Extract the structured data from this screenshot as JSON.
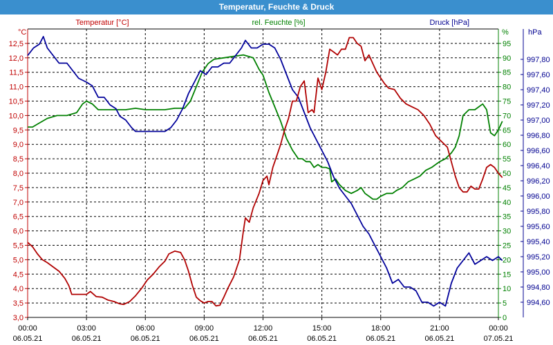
{
  "window": {
    "title": "Temperatur, Feuchte & Druck"
  },
  "chart_data": {
    "type": "line",
    "title": "Temperatur, Feuchte & Druck",
    "x_ticks": [
      {
        "time": "00:00",
        "date": "06.05.21"
      },
      {
        "time": "03:00",
        "date": "06.05.21"
      },
      {
        "time": "06:00",
        "date": "06.05.21"
      },
      {
        "time": "09:00",
        "date": "06.05.21"
      },
      {
        "time": "12:00",
        "date": "06.05.21"
      },
      {
        "time": "15:00",
        "date": "06.05.21"
      },
      {
        "time": "18:00",
        "date": "06.05.21"
      },
      {
        "time": "21:00",
        "date": "06.05.21"
      },
      {
        "time": "00:00",
        "date": "07.05.21"
      }
    ],
    "xlim_hours": [
      0,
      24
    ],
    "grid": true,
    "axes": {
      "temperature": {
        "label": "Temperatur [°C]",
        "unit": "°C",
        "color": "#c00000",
        "ylim": [
          3.0,
          13.0
        ],
        "ticks": [
          "3,0",
          "3,5",
          "4,0",
          "4,5",
          "5,0",
          "5,5",
          "6,0",
          "6,5",
          "7,0",
          "7,5",
          "8,0",
          "8,5",
          "9,0",
          "9,5",
          "10,0",
          "10,5",
          "11,0",
          "11,5",
          "12,0",
          "12,5"
        ]
      },
      "humidity": {
        "label": "rel. Feuchte [%]",
        "unit": "%",
        "color": "#008000",
        "ylim": [
          0,
          100
        ],
        "ticks": [
          "0",
          "5",
          "10",
          "15",
          "20",
          "25",
          "30",
          "35",
          "40",
          "45",
          "50",
          "55",
          "60",
          "65",
          "70",
          "75",
          "80",
          "85",
          "90",
          "95"
        ]
      },
      "pressure": {
        "label": "Druck [hPa]",
        "unit": "hPa",
        "color": "#000090",
        "ylim": [
          994.4,
          998.2
        ],
        "ticks": [
          "994,60",
          "994,80",
          "995,00",
          "995,20",
          "995,40",
          "995,60",
          "995,80",
          "996,00",
          "996,20",
          "996,40",
          "996,60",
          "996,80",
          "997,00",
          "997,20",
          "997,40",
          "997,60",
          "997,80"
        ]
      }
    },
    "series": [
      {
        "name": "Temperatur",
        "axis": "temperature",
        "color": "#b00000",
        "points": [
          [
            0,
            5.6
          ],
          [
            0.25,
            5.45
          ],
          [
            0.5,
            5.2
          ],
          [
            0.75,
            5.0
          ],
          [
            1.0,
            4.9
          ],
          [
            1.3,
            4.75
          ],
          [
            1.6,
            4.6
          ],
          [
            1.9,
            4.35
          ],
          [
            2.1,
            4.1
          ],
          [
            2.25,
            3.8
          ],
          [
            2.6,
            3.8
          ],
          [
            3.0,
            3.8
          ],
          [
            3.2,
            3.9
          ],
          [
            3.5,
            3.72
          ],
          [
            3.8,
            3.7
          ],
          [
            4.1,
            3.6
          ],
          [
            4.4,
            3.55
          ],
          [
            4.7,
            3.47
          ],
          [
            4.9,
            3.45
          ],
          [
            5.2,
            3.55
          ],
          [
            5.5,
            3.75
          ],
          [
            5.8,
            4.0
          ],
          [
            6.1,
            4.3
          ],
          [
            6.4,
            4.5
          ],
          [
            6.7,
            4.75
          ],
          [
            7.0,
            4.95
          ],
          [
            7.2,
            5.2
          ],
          [
            7.5,
            5.3
          ],
          [
            7.8,
            5.25
          ],
          [
            8.0,
            5.0
          ],
          [
            8.2,
            4.6
          ],
          [
            8.4,
            4.1
          ],
          [
            8.6,
            3.7
          ],
          [
            8.8,
            3.58
          ],
          [
            9.0,
            3.5
          ],
          [
            9.2,
            3.55
          ],
          [
            9.4,
            3.55
          ],
          [
            9.6,
            3.4
          ],
          [
            9.8,
            3.42
          ],
          [
            10.0,
            3.7
          ],
          [
            10.2,
            4.0
          ],
          [
            10.5,
            4.4
          ],
          [
            10.8,
            5.0
          ],
          [
            11.0,
            6.0
          ],
          [
            11.1,
            6.45
          ],
          [
            11.3,
            6.3
          ],
          [
            11.5,
            6.8
          ],
          [
            11.8,
            7.3
          ],
          [
            12.0,
            7.75
          ],
          [
            12.2,
            7.9
          ],
          [
            12.3,
            7.6
          ],
          [
            12.5,
            8.2
          ],
          [
            12.7,
            8.6
          ],
          [
            12.9,
            9.0
          ],
          [
            13.1,
            9.5
          ],
          [
            13.3,
            9.9
          ],
          [
            13.5,
            10.5
          ],
          [
            13.7,
            10.5
          ],
          [
            13.9,
            11.0
          ],
          [
            14.1,
            11.2
          ],
          [
            14.3,
            10.1
          ],
          [
            14.5,
            10.2
          ],
          [
            14.6,
            10.1
          ],
          [
            14.8,
            11.3
          ],
          [
            15.0,
            10.9
          ],
          [
            15.2,
            11.5
          ],
          [
            15.4,
            12.3
          ],
          [
            15.6,
            12.2
          ],
          [
            15.8,
            12.1
          ],
          [
            16.0,
            12.3
          ],
          [
            16.2,
            12.3
          ],
          [
            16.4,
            12.7
          ],
          [
            16.6,
            12.7
          ],
          [
            16.8,
            12.5
          ],
          [
            17.0,
            12.4
          ],
          [
            17.2,
            11.9
          ],
          [
            17.4,
            12.1
          ],
          [
            17.6,
            11.8
          ],
          [
            17.8,
            11.5
          ],
          [
            18.0,
            11.3
          ],
          [
            18.2,
            11.1
          ],
          [
            18.4,
            10.95
          ],
          [
            18.7,
            10.9
          ],
          [
            19.0,
            10.6
          ],
          [
            19.3,
            10.4
          ],
          [
            19.6,
            10.3
          ],
          [
            19.9,
            10.2
          ],
          [
            20.2,
            10.0
          ],
          [
            20.5,
            9.7
          ],
          [
            20.8,
            9.3
          ],
          [
            21.1,
            9.1
          ],
          [
            21.4,
            8.9
          ],
          [
            21.6,
            8.4
          ],
          [
            21.8,
            7.9
          ],
          [
            22.0,
            7.5
          ],
          [
            22.2,
            7.35
          ],
          [
            22.4,
            7.35
          ],
          [
            22.6,
            7.55
          ],
          [
            22.8,
            7.45
          ],
          [
            23.0,
            7.45
          ],
          [
            23.2,
            7.8
          ],
          [
            23.4,
            8.2
          ],
          [
            23.6,
            8.3
          ],
          [
            23.8,
            8.2
          ],
          [
            24.0,
            8.0
          ],
          [
            24.2,
            7.85
          ]
        ]
      },
      {
        "name": "rel. Feuchte",
        "axis": "humidity",
        "color": "#008000",
        "points": [
          [
            0,
            66
          ],
          [
            0.25,
            66
          ],
          [
            0.5,
            67
          ],
          [
            1.0,
            69
          ],
          [
            1.5,
            70
          ],
          [
            2.0,
            70
          ],
          [
            2.5,
            71
          ],
          [
            2.8,
            74
          ],
          [
            3.0,
            75
          ],
          [
            3.3,
            74
          ],
          [
            3.6,
            72
          ],
          [
            4.0,
            72
          ],
          [
            4.5,
            72
          ],
          [
            5.0,
            72
          ],
          [
            5.5,
            72.5
          ],
          [
            6.0,
            72
          ],
          [
            6.5,
            72
          ],
          [
            7.0,
            72
          ],
          [
            7.5,
            72.5
          ],
          [
            8.0,
            72.5
          ],
          [
            8.3,
            75
          ],
          [
            8.6,
            80
          ],
          [
            8.9,
            85
          ],
          [
            9.2,
            88
          ],
          [
            9.5,
            89.5
          ],
          [
            10.0,
            90
          ],
          [
            10.5,
            90.5
          ],
          [
            11.0,
            91
          ],
          [
            11.5,
            90
          ],
          [
            11.8,
            86
          ],
          [
            12.0,
            84
          ],
          [
            12.3,
            78
          ],
          [
            12.6,
            73
          ],
          [
            12.9,
            68
          ],
          [
            13.2,
            62
          ],
          [
            13.5,
            58
          ],
          [
            13.8,
            55
          ],
          [
            14.0,
            55
          ],
          [
            14.2,
            54
          ],
          [
            14.4,
            54
          ],
          [
            14.6,
            52
          ],
          [
            14.8,
            53
          ],
          [
            15.0,
            52
          ],
          [
            15.2,
            52
          ],
          [
            15.4,
            51.5
          ],
          [
            15.5,
            47
          ],
          [
            15.7,
            48
          ],
          [
            15.9,
            46
          ],
          [
            16.2,
            44
          ],
          [
            16.5,
            43
          ],
          [
            16.8,
            44
          ],
          [
            17.0,
            45
          ],
          [
            17.2,
            43
          ],
          [
            17.4,
            42
          ],
          [
            17.6,
            41
          ],
          [
            17.8,
            41
          ],
          [
            18.0,
            42
          ],
          [
            18.3,
            43
          ],
          [
            18.6,
            43
          ],
          [
            18.8,
            44
          ],
          [
            19.1,
            45
          ],
          [
            19.4,
            47
          ],
          [
            19.7,
            48
          ],
          [
            20.0,
            49
          ],
          [
            20.3,
            51
          ],
          [
            20.6,
            52
          ],
          [
            21.0,
            54
          ],
          [
            21.3,
            55
          ],
          [
            21.6,
            57
          ],
          [
            21.8,
            59
          ],
          [
            22.0,
            63
          ],
          [
            22.2,
            70
          ],
          [
            22.5,
            72
          ],
          [
            22.8,
            72
          ],
          [
            23.0,
            73
          ],
          [
            23.2,
            74
          ],
          [
            23.4,
            72
          ],
          [
            23.6,
            64
          ],
          [
            23.8,
            63
          ],
          [
            24.0,
            65
          ],
          [
            24.2,
            68
          ]
        ]
      },
      {
        "name": "Druck",
        "axis": "pressure",
        "color": "#00009a",
        "points": [
          [
            0,
            997.85
          ],
          [
            0.3,
            997.95
          ],
          [
            0.6,
            998.0
          ],
          [
            0.8,
            998.1
          ],
          [
            1.0,
            997.95
          ],
          [
            1.3,
            997.85
          ],
          [
            1.6,
            997.75
          ],
          [
            2.0,
            997.75
          ],
          [
            2.3,
            997.65
          ],
          [
            2.6,
            997.55
          ],
          [
            3.0,
            997.5
          ],
          [
            3.3,
            997.45
          ],
          [
            3.6,
            997.3
          ],
          [
            3.9,
            997.3
          ],
          [
            4.2,
            997.2
          ],
          [
            4.5,
            997.15
          ],
          [
            4.7,
            997.05
          ],
          [
            5.0,
            997.0
          ],
          [
            5.3,
            996.9
          ],
          [
            5.5,
            996.85
          ],
          [
            6.0,
            996.85
          ],
          [
            6.5,
            996.85
          ],
          [
            7.0,
            996.85
          ],
          [
            7.3,
            996.9
          ],
          [
            7.6,
            997.0
          ],
          [
            7.9,
            997.15
          ],
          [
            8.2,
            997.35
          ],
          [
            8.5,
            997.5
          ],
          [
            8.8,
            997.65
          ],
          [
            9.1,
            997.6
          ],
          [
            9.4,
            997.7
          ],
          [
            9.7,
            997.7
          ],
          [
            10.0,
            997.75
          ],
          [
            10.3,
            997.75
          ],
          [
            10.6,
            997.85
          ],
          [
            10.9,
            997.95
          ],
          [
            11.1,
            998.05
          ],
          [
            11.4,
            997.95
          ],
          [
            11.7,
            997.95
          ],
          [
            12.0,
            998.0
          ],
          [
            12.3,
            998.0
          ],
          [
            12.6,
            997.95
          ],
          [
            12.9,
            997.8
          ],
          [
            13.2,
            997.6
          ],
          [
            13.5,
            997.4
          ],
          [
            13.8,
            997.3
          ],
          [
            14.1,
            997.1
          ],
          [
            14.4,
            996.9
          ],
          [
            14.7,
            996.75
          ],
          [
            15.0,
            996.6
          ],
          [
            15.3,
            996.45
          ],
          [
            15.6,
            996.25
          ],
          [
            15.9,
            996.1
          ],
          [
            16.2,
            996.0
          ],
          [
            16.5,
            995.9
          ],
          [
            16.8,
            995.75
          ],
          [
            17.1,
            995.6
          ],
          [
            17.4,
            995.5
          ],
          [
            17.7,
            995.35
          ],
          [
            18.0,
            995.2
          ],
          [
            18.3,
            995.05
          ],
          [
            18.6,
            994.85
          ],
          [
            18.9,
            994.9
          ],
          [
            19.2,
            994.8
          ],
          [
            19.5,
            994.8
          ],
          [
            19.8,
            994.75
          ],
          [
            20.1,
            994.6
          ],
          [
            20.4,
            994.6
          ],
          [
            20.7,
            994.55
          ],
          [
            21.0,
            994.6
          ],
          [
            21.3,
            994.55
          ],
          [
            21.6,
            994.85
          ],
          [
            21.9,
            995.05
          ],
          [
            22.2,
            995.15
          ],
          [
            22.5,
            995.25
          ],
          [
            22.8,
            995.1
          ],
          [
            23.1,
            995.15
          ],
          [
            23.4,
            995.2
          ],
          [
            23.7,
            995.15
          ],
          [
            24.0,
            995.2
          ],
          [
            24.2,
            995.15
          ]
        ]
      }
    ]
  }
}
